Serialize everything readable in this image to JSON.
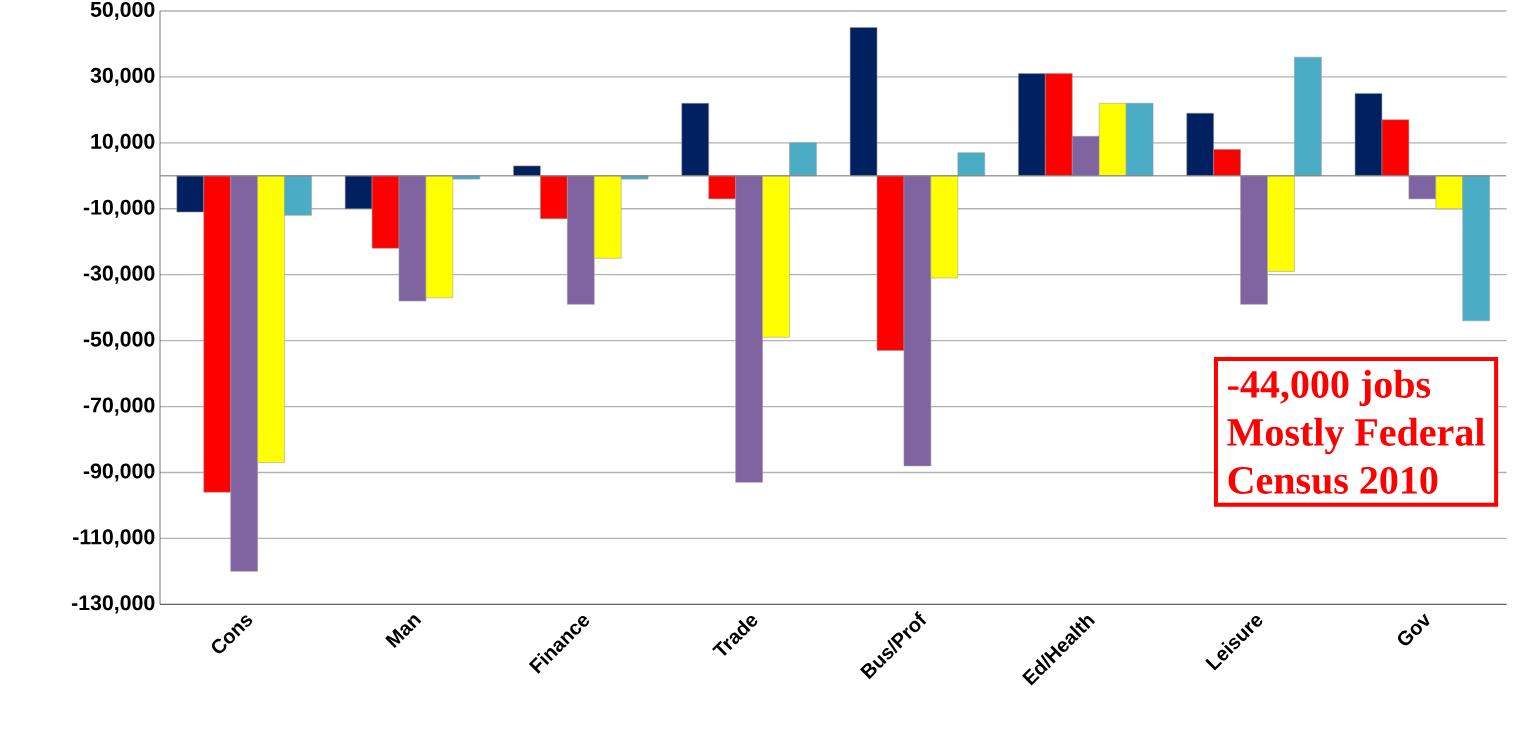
{
  "chart_data": {
    "type": "bar",
    "categories": [
      "Cons",
      "Man",
      "Finance",
      "Trade",
      "Bus/Prof",
      "Ed/Health",
      "Leisure",
      "Gov"
    ],
    "series": [
      {
        "color": "#002060",
        "values": [
          -11000,
          -10000,
          3000,
          22000,
          45000,
          31000,
          19000,
          25000
        ]
      },
      {
        "color": "#ff0000",
        "values": [
          -96000,
          -22000,
          -13000,
          -7000,
          -53000,
          31000,
          8000,
          17000
        ]
      },
      {
        "color": "#8064a2",
        "values": [
          -120000,
          -38000,
          -39000,
          -93000,
          -88000,
          12000,
          -39000,
          -7000
        ]
      },
      {
        "color": "#ffff00",
        "values": [
          -87000,
          -37000,
          -25000,
          -49000,
          -31000,
          22000,
          -29000,
          -10000
        ]
      },
      {
        "color": "#4bacc6",
        "values": [
          -12000,
          -1000,
          -1000,
          10000,
          7000,
          22000,
          36000,
          -44000
        ]
      }
    ],
    "ylim": [
      -130000,
      50000
    ],
    "yticks": [
      {
        "value": -130000,
        "label": "-130,000"
      },
      {
        "value": -110000,
        "label": "-110,000"
      },
      {
        "value": -90000,
        "label": "-90,000"
      },
      {
        "value": -70000,
        "label": "-70,000"
      },
      {
        "value": -50000,
        "label": "-50,000"
      },
      {
        "value": -30000,
        "label": "-30,000"
      },
      {
        "value": -10000,
        "label": "-10,000"
      },
      {
        "value": 10000,
        "label": "10,000"
      },
      {
        "value": 30000,
        "label": "30,000"
      },
      {
        "value": 50000,
        "label": "50,000"
      }
    ],
    "grid": "y",
    "annotations": [
      "-44,000 jobs",
      "Mostly Federal",
      "Census 2010"
    ]
  }
}
